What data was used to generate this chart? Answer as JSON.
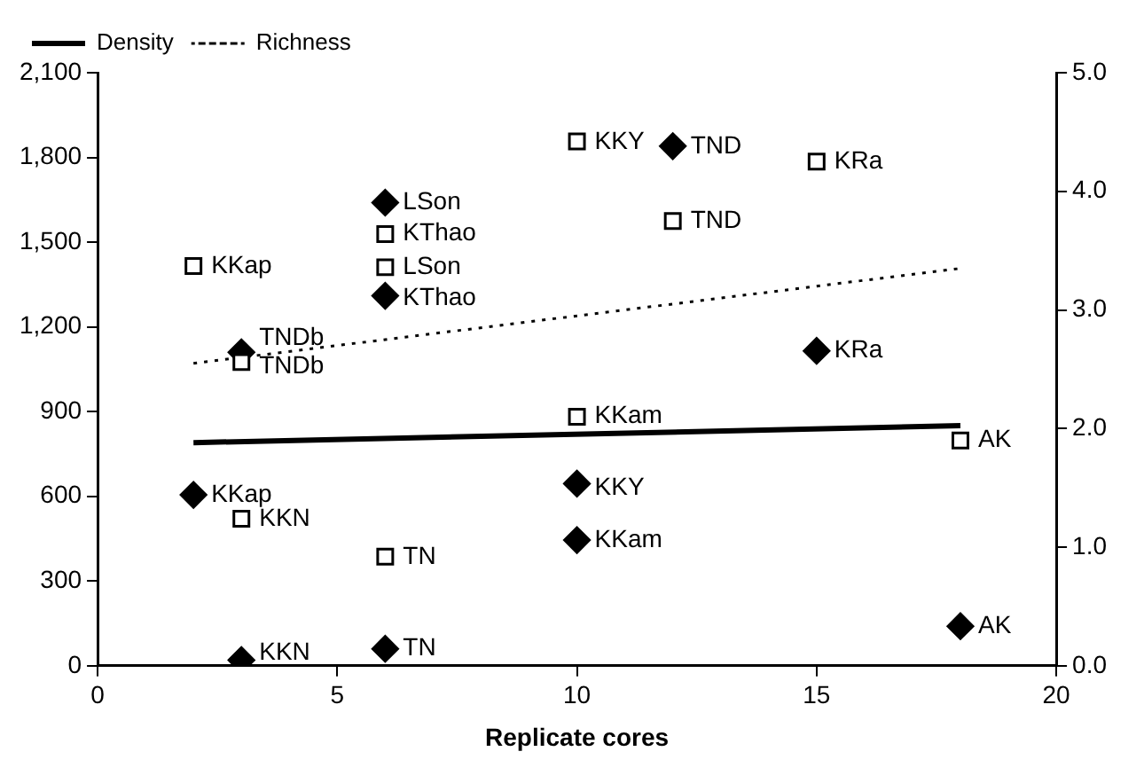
{
  "chart_data": {
    "type": "scatter",
    "xlabel": "Replicate cores",
    "xlim": [
      0,
      20
    ],
    "xticks": [
      0,
      5,
      10,
      15,
      20
    ],
    "ylim": [
      0,
      2100
    ],
    "yticks": [
      0,
      300,
      600,
      900,
      {
        "value": 1200,
        "label": "1,200"
      },
      {
        "value": 1500,
        "label": "1,500"
      },
      {
        "value": 1800,
        "label": "1,800"
      },
      {
        "value": 2100,
        "label": "2,100"
      }
    ],
    "y2lim": [
      0,
      5
    ],
    "y2ticks": [
      {
        "value": 0,
        "label": "0.0"
      },
      {
        "value": 1,
        "label": "1.0"
      },
      {
        "value": 2,
        "label": "2.0"
      },
      {
        "value": 3,
        "label": "3.0"
      },
      {
        "value": 4,
        "label": "4.0"
      },
      {
        "value": 5,
        "label": "5.0"
      }
    ],
    "grid": false,
    "legend": "top left",
    "series": [
      {
        "type": "scatter",
        "marker": "diamond",
        "color": "#000000",
        "x": [
          3,
          2,
          3,
          6,
          6,
          6,
          10,
          10,
          12,
          15,
          18
        ],
        "values": [
          20,
          605,
          1110,
          1640,
          1310,
          60,
          645,
          445,
          1840,
          1115,
          140
        ]
      },
      {
        "type": "scatter",
        "marker": "square",
        "color": "#000000",
        "axis": "y2",
        "x": [
          2,
          3,
          3,
          6,
          6,
          6,
          10,
          10,
          12,
          15,
          18
        ],
        "values": [
          3.37,
          2.56,
          1.24,
          3.64,
          3.36,
          0.92,
          4.42,
          2.1,
          3.75,
          4.25,
          1.9
        ]
      },
      {
        "type": "line",
        "name": "Density",
        "color": "#000000",
        "line_style": "solid",
        "marker": "none",
        "x": [
          2,
          18
        ],
        "values": [
          790,
          850
        ]
      },
      {
        "type": "line",
        "name": "Richness",
        "color": "#000000",
        "line_style": "dotted",
        "marker": "none",
        "axis": "y2",
        "x": [
          2,
          18
        ],
        "values": [
          2.55,
          3.35
        ]
      }
    ],
    "annotations": [
      {
        "text": "KKN",
        "x": 3,
        "y": 45
      },
      {
        "text": "KKap",
        "x": 2,
        "y": 605
      },
      {
        "text": "TNDb",
        "x": 3,
        "y": 1160
      },
      {
        "text": "LSon",
        "x": 6,
        "y": 1640
      },
      {
        "text": "KThao",
        "x": 6,
        "y": 1300
      },
      {
        "text": "TN",
        "x": 6,
        "y": 60
      },
      {
        "text": "KKY",
        "x": 10,
        "y": 630
      },
      {
        "text": "KKam",
        "x": 10,
        "y": 445
      },
      {
        "text": "TND",
        "x": 12,
        "y": 1840
      },
      {
        "text": "KRa",
        "x": 15,
        "y": 1115
      },
      {
        "text": "AK",
        "x": 18,
        "y": 140
      },
      {
        "text": "KKap",
        "x": 2,
        "y": 1415
      },
      {
        "text": "TNDb",
        "x": 3,
        "y": 1060
      },
      {
        "text": "KKN",
        "x": 3,
        "y": 520
      },
      {
        "text": "KThao",
        "x": 6,
        "y": 1530
      },
      {
        "text": "LSon",
        "x": 6,
        "y": 1410
      },
      {
        "text": "TN",
        "x": 6,
        "y": 385
      },
      {
        "text": "KKY",
        "x": 10,
        "y": 1855
      },
      {
        "text": "KKam",
        "x": 10,
        "y": 885
      },
      {
        "text": "TND",
        "x": 12,
        "y": 1575
      },
      {
        "text": "KRa",
        "x": 15,
        "y": 1785
      },
      {
        "text": "AK",
        "x": 18,
        "y": 800
      }
    ]
  }
}
